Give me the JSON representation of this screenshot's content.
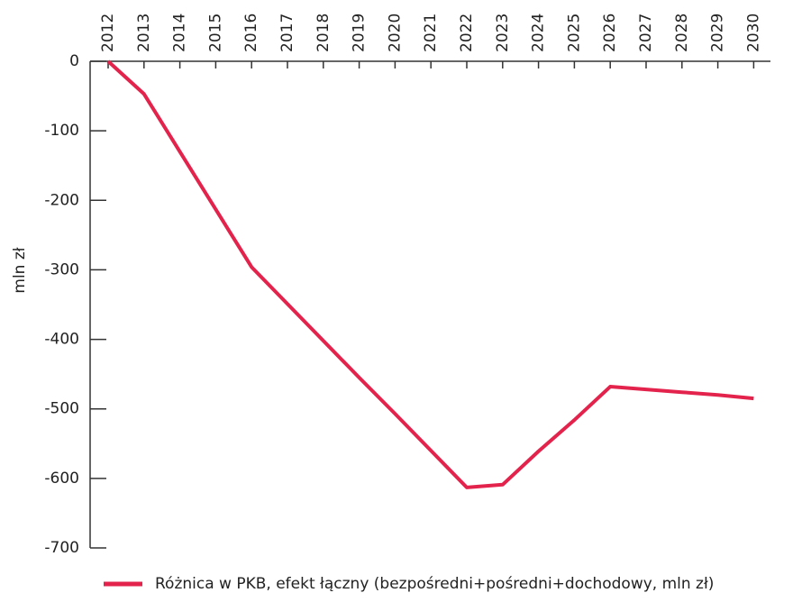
{
  "chart_data": {
    "type": "line",
    "y_label": "mln zł",
    "categories": [
      "2012",
      "2013",
      "2014",
      "2015",
      "2016",
      "2017",
      "2018",
      "2019",
      "2020",
      "2021",
      "2022",
      "2023",
      "2024",
      "2025",
      "2026",
      "2027",
      "2028",
      "2029",
      "2030"
    ],
    "series": [
      {
        "name": "Różnica w PKB, efekt łączny (bezpośredni+pośredni+dochodowy, mln zł)",
        "color": "#e3234c",
        "values": [
          0,
          -47,
          -130,
          -213,
          -296,
          -349,
          -402,
          -455,
          -507,
          -560,
          -613,
          -609,
          -561,
          -516,
          -468,
          -472,
          -476,
          -480,
          -485
        ]
      }
    ],
    "ylim": [
      -700,
      0
    ],
    "yticks": [
      0,
      -100,
      -200,
      -300,
      -400,
      -500,
      -600,
      -700
    ]
  }
}
